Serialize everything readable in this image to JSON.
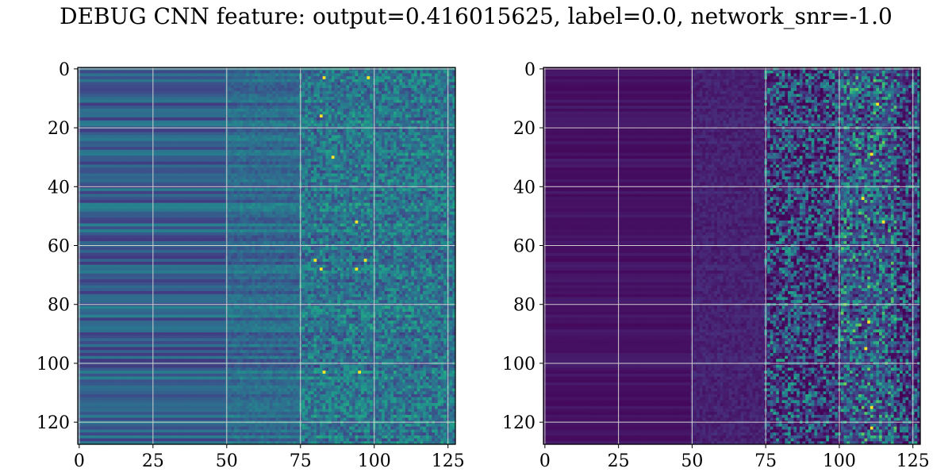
{
  "figure": {
    "title": "DEBUG CNN feature: output=0.416015625, label=0.0, network_snr=-1.0"
  },
  "chart_data": [
    {
      "type": "heatmap",
      "colormap": "viridis",
      "rows": 128,
      "cols": 128,
      "xlim": [
        0,
        128
      ],
      "ylim": [
        128,
        0
      ],
      "grid": true,
      "x_ticks": [
        "0",
        "25",
        "50",
        "75",
        "100",
        "125"
      ],
      "y_ticks": [
        "0",
        "20",
        "40",
        "60",
        "80",
        "100",
        "120"
      ],
      "x_tick_values": [
        0,
        25,
        50,
        75,
        100,
        125
      ],
      "y_tick_values": [
        0,
        20,
        40,
        60,
        80,
        100,
        120
      ],
      "description_values": {
        "left_columns_0_50_level": 0.3,
        "mid_columns_50_75_level": 0.35,
        "right_columns_75_128_level": 0.4,
        "bright_spots": [
          [
            3,
            83
          ],
          [
            3,
            98
          ],
          [
            16,
            82
          ],
          [
            30,
            86
          ],
          [
            52,
            94
          ],
          [
            65,
            80
          ],
          [
            65,
            97
          ],
          [
            68,
            82
          ],
          [
            68,
            94
          ],
          [
            103,
            83
          ],
          [
            103,
            95
          ]
        ]
      }
    },
    {
      "type": "heatmap",
      "colormap": "viridis",
      "rows": 128,
      "cols": 128,
      "xlim": [
        0,
        128
      ],
      "ylim": [
        128,
        0
      ],
      "grid": true,
      "x_ticks": [
        "0",
        "25",
        "50",
        "75",
        "100",
        "125"
      ],
      "y_ticks": [
        "0",
        "20",
        "40",
        "60",
        "80",
        "100",
        "120"
      ],
      "x_tick_values": [
        0,
        25,
        50,
        75,
        100,
        125
      ],
      "y_tick_values": [
        0,
        20,
        40,
        60,
        80,
        100,
        120
      ],
      "description_values": {
        "left_columns_0_75_level": 0.05,
        "right_columns_75_128_level": 0.2,
        "bright_spots": [
          [
            12,
            113
          ],
          [
            29,
            111
          ],
          [
            44,
            108
          ],
          [
            52,
            115
          ],
          [
            86,
            110
          ],
          [
            95,
            109
          ],
          [
            115,
            111
          ],
          [
            122,
            111
          ]
        ]
      }
    }
  ]
}
